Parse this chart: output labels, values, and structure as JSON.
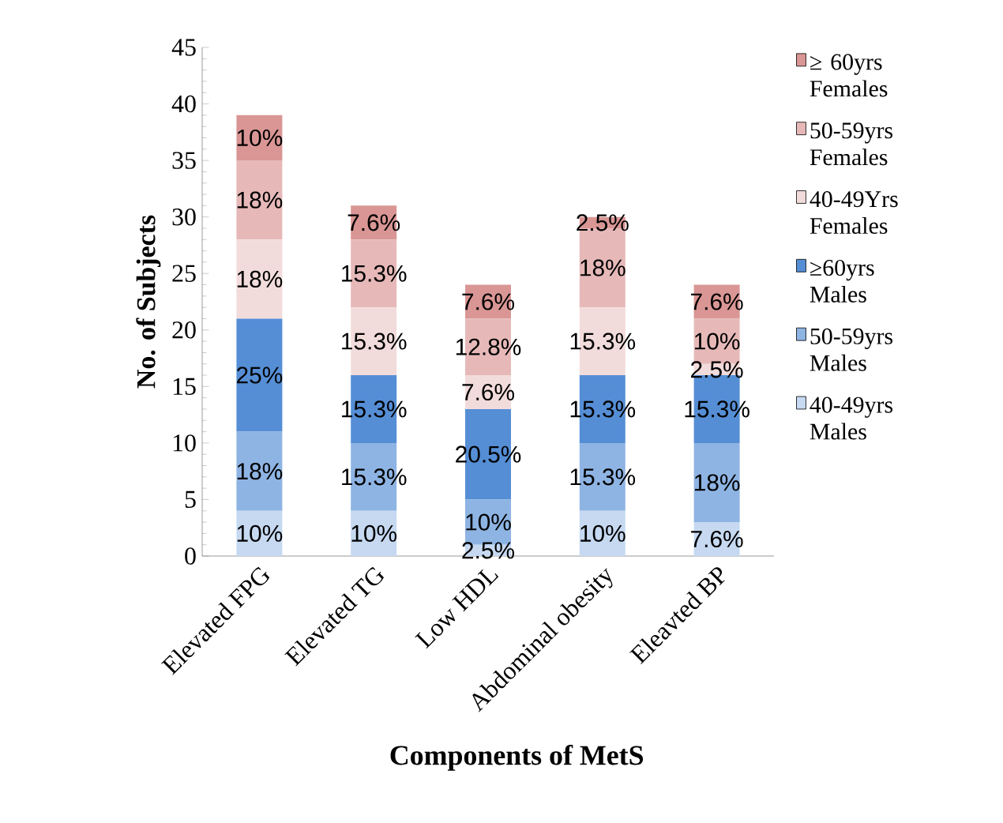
{
  "chart_data": {
    "type": "bar",
    "stacked": true,
    "xlabel": "Components of MetS",
    "ylabel": "No. of Subjects",
    "categories": [
      "Elevated FPG",
      "Elevated TG",
      "Low HDL",
      "Abdominal obesity",
      "Eleavted BP"
    ],
    "ylim": [
      0,
      45
    ],
    "yticks": [
      0,
      5,
      10,
      15,
      20,
      25,
      30,
      35,
      40,
      45
    ],
    "legend": "right",
    "grid": false,
    "series": [
      {
        "name": "40-49yrs Males",
        "color": "#c6d9f1",
        "values": [
          4,
          4,
          1,
          4,
          3
        ]
      },
      {
        "name": "50-59yrs Males",
        "color": "#8eb4e3",
        "values": [
          7,
          6,
          4,
          6,
          7
        ]
      },
      {
        "name": "≥60yrs Males",
        "color": "#558ed5",
        "values": [
          10,
          6,
          8,
          6,
          6
        ]
      },
      {
        "name": "40-49Yrs Females",
        "color": "#f2dcdb",
        "values": [
          7,
          6,
          3,
          6,
          1
        ]
      },
      {
        "name": "50-59yrs Females",
        "color": "#e6b9b8",
        "values": [
          7,
          6,
          5,
          7,
          4
        ]
      },
      {
        "name": "≥ 60yrs Females",
        "color": "#d99694",
        "values": [
          4,
          3,
          3,
          1,
          3
        ]
      }
    ],
    "annotations": [
      "10%",
      "10%",
      "2.5%",
      "10%",
      "7.6%",
      "18%",
      "15.3%",
      "10%",
      "15.3%",
      "18%",
      "25%",
      "15.3%",
      "20.5%",
      "15.3%",
      "15.3%",
      "18%",
      "15.3%",
      "7.6%",
      "15.3%",
      "2.5%",
      "18%",
      "15.3%",
      "12.8%",
      "18%",
      "10%",
      "10%",
      "7.6%",
      "7.6%",
      "2.5%",
      "7.6%"
    ]
  }
}
